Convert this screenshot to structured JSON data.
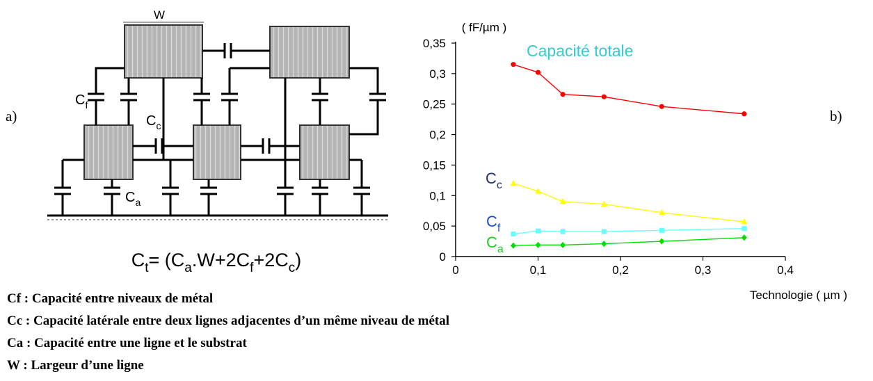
{
  "labels": {
    "part_a": "a)",
    "part_b": "b)",
    "w": "W",
    "formula": "C_t= (C_a.W+2C_f+2C_c)",
    "cf": "C_f",
    "cc": "C_c",
    "ca": "C_a"
  },
  "notes": [
    "Cf : Capacité entre niveaux de métal",
    "Cc : Capacité latérale entre deux lignes adjacentes d’un même niveau de métal",
    "Ca : Capacité entre une ligne et le substrat",
    "W : Largeur d’une ligne"
  ],
  "chart_data": {
    "type": "line",
    "title": "",
    "xlabel": "Technologie ( µm )",
    "ylabel": "( fF/µm )",
    "xlim": [
      0,
      0.4
    ],
    "ylim": [
      0,
      0.35
    ],
    "xticks": [
      0,
      0.1,
      0.2,
      0.3,
      0.4
    ],
    "xtick_labels": [
      "0",
      "0,1",
      "0,2",
      "0,3",
      "0,4"
    ],
    "yticks": [
      0,
      0.05,
      0.1,
      0.15,
      0.2,
      0.25,
      0.3,
      0.35
    ],
    "ytick_labels": [
      "0",
      "0,05",
      "0,1",
      "0,15",
      "0,2",
      "0,25",
      "0,3",
      "0,35"
    ],
    "grid": false,
    "x": [
      0.07,
      0.1,
      0.13,
      0.18,
      0.25,
      0.35
    ],
    "series": [
      {
        "name": "Capacité totale",
        "label_kind": "plain",
        "color": "#ff0000",
        "marker": "circle",
        "label_color": "#33cccc",
        "values": [
          0.315,
          0.302,
          0.266,
          0.262,
          0.246,
          0.234
        ]
      },
      {
        "name": "C_c",
        "label_kind": "sub",
        "color": "#ffff00",
        "marker": "triangle",
        "label_color": "#1f2f6f",
        "values": [
          0.12,
          0.107,
          0.09,
          0.086,
          0.072,
          0.057
        ]
      },
      {
        "name": "C_f",
        "label_kind": "sub",
        "color": "#66ffff",
        "marker": "square",
        "label_color": "#1f4fbf",
        "values": [
          0.037,
          0.042,
          0.041,
          0.041,
          0.043,
          0.046
        ]
      },
      {
        "name": "C_a",
        "label_kind": "sub",
        "color": "#00dd00",
        "marker": "diamond",
        "label_color": "#22cc22",
        "values": [
          0.018,
          0.019,
          0.019,
          0.021,
          0.025,
          0.031
        ]
      }
    ]
  }
}
